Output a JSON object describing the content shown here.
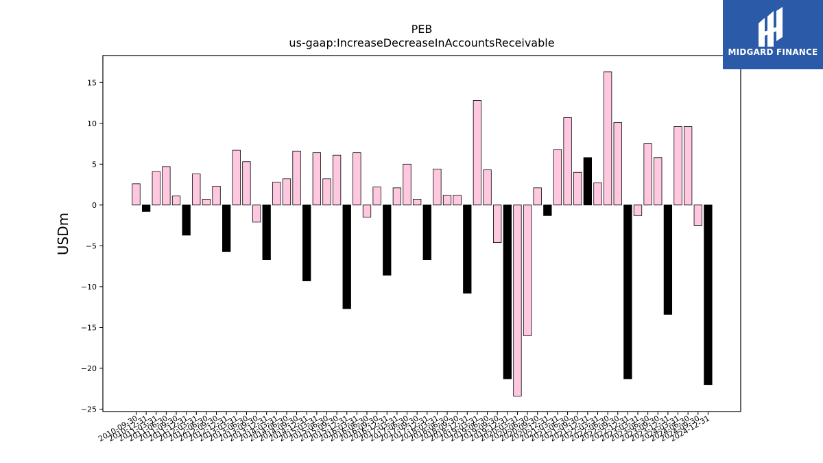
{
  "logo": {
    "text": "MIDGARD FINANCE",
    "icon": "midgard-logo-icon",
    "background": "#2a5aa8"
  },
  "chart_data": {
    "type": "bar",
    "title": "PEB",
    "subtitle": "us-gaap:IncreaseDecreaseInAccountsReceivable",
    "ylabel": "USDm",
    "xlabel": "",
    "ylim": [
      -25.3,
      18.3
    ],
    "yticks": [
      -25,
      -20,
      -15,
      -10,
      -5,
      0,
      5,
      10,
      15
    ],
    "grid": false,
    "colors": {
      "fiscal_year_end": "#000000",
      "quarter": "#ffc8e0",
      "edge": "#000000"
    },
    "categories": [
      "2010-09-30",
      "2010-12-31",
      "2011-03-31",
      "2011-06-30",
      "2011-09-30",
      "2011-12-31",
      "2012-03-31",
      "2012-06-30",
      "2012-09-30",
      "2012-12-31",
      "2013-03-31",
      "2013-06-30",
      "2013-09-30",
      "2013-12-31",
      "2014-03-31",
      "2014-06-30",
      "2014-09-30",
      "2014-12-31",
      "2015-03-31",
      "2015-06-30",
      "2015-09-30",
      "2015-12-31",
      "2016-03-31",
      "2016-06-30",
      "2016-09-30",
      "2016-12-31",
      "2017-03-31",
      "2017-06-30",
      "2017-09-30",
      "2017-12-31",
      "2018-03-31",
      "2018-06-30",
      "2018-09-30",
      "2018-12-31",
      "2019-03-31",
      "2019-06-30",
      "2019-09-30",
      "2019-12-31",
      "2020-03-31",
      "2020-06-30",
      "2020-09-30",
      "2020-12-31",
      "2021-03-31",
      "2021-06-30",
      "2021-09-30",
      "2021-12-31",
      "2022-03-31",
      "2022-06-30",
      "2022-09-30",
      "2022-12-31",
      "2023-03-31",
      "2023-06-30",
      "2023-09-30",
      "2023-12-31",
      "2024-03-31",
      "2024-06-30",
      "2024-09-30",
      "2024-12-31"
    ],
    "values": [
      2.6,
      -0.8,
      4.1,
      4.7,
      1.1,
      -3.7,
      3.8,
      0.7,
      2.3,
      -5.7,
      6.7,
      5.3,
      -2.1,
      -6.7,
      2.8,
      3.2,
      6.6,
      -9.3,
      6.4,
      3.2,
      6.1,
      -12.7,
      6.4,
      -1.5,
      2.2,
      -8.6,
      2.1,
      5.0,
      0.7,
      -6.7,
      4.4,
      1.2,
      1.2,
      -10.8,
      12.8,
      4.3,
      -4.6,
      -21.3,
      -23.4,
      -16.0,
      2.1,
      -1.3,
      6.8,
      10.7,
      4.0,
      5.8,
      2.7,
      16.3,
      10.1,
      -21.3,
      -1.3,
      7.5,
      5.8,
      -13.4,
      9.6,
      9.6,
      -2.5,
      -22.0
    ],
    "fiscal_year_end": [
      false,
      true,
      false,
      false,
      false,
      true,
      false,
      false,
      false,
      true,
      false,
      false,
      false,
      true,
      false,
      false,
      false,
      true,
      false,
      false,
      false,
      true,
      false,
      false,
      false,
      true,
      false,
      false,
      false,
      true,
      false,
      false,
      false,
      true,
      false,
      false,
      false,
      true,
      false,
      false,
      false,
      true,
      false,
      false,
      false,
      true,
      false,
      false,
      false,
      true,
      false,
      false,
      false,
      true,
      false,
      false,
      false,
      true
    ]
  }
}
